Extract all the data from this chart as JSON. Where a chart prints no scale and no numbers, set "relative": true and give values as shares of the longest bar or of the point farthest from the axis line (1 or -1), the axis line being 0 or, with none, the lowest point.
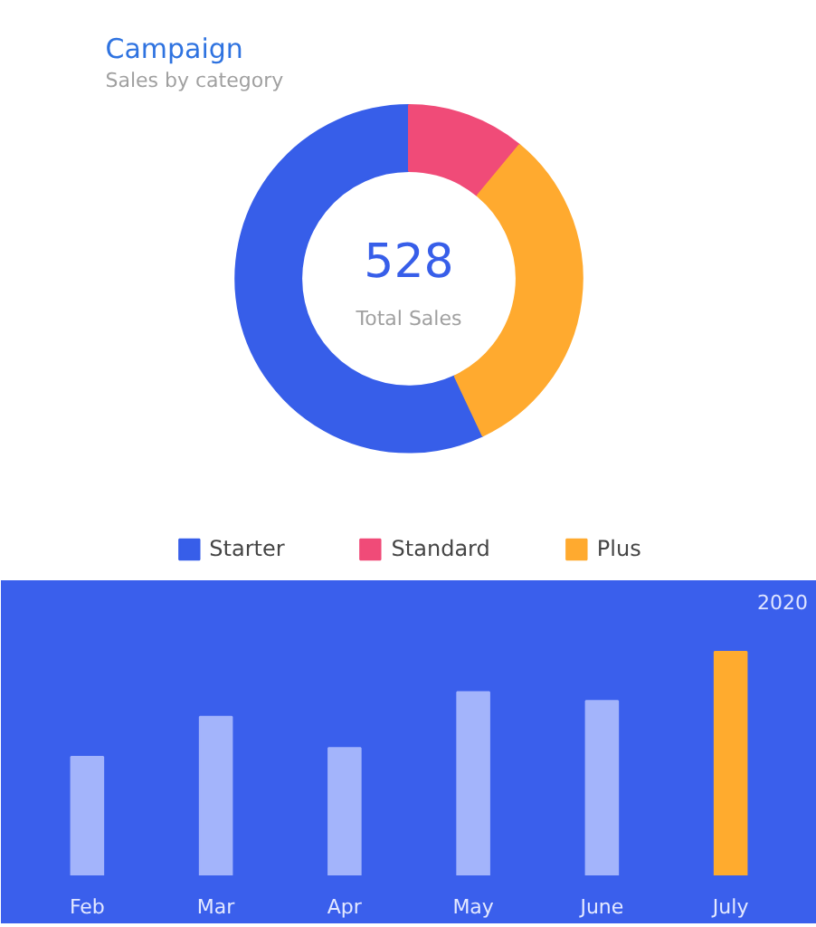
{
  "chart_data": [
    {
      "type": "donut",
      "title": "Campaign",
      "subtitle": "Sales by category",
      "categories": [
        "Starter",
        "Standard",
        "Plus"
      ],
      "values": [
        57,
        11,
        32
      ],
      "colors": [
        "#375ee9",
        "#f04b78",
        "#ffaa2f"
      ],
      "annotations": [
        "528",
        "Total Sales"
      ],
      "legend": "bottom"
    },
    {
      "type": "bar",
      "title": "2020",
      "categories": [
        "Feb",
        "Mar",
        "Apr",
        "May",
        "June",
        "July"
      ],
      "values": [
        0.53,
        0.71,
        0.57,
        0.82,
        0.78,
        1
      ],
      "colors": [
        "#a3b4fb",
        "#a3b4fb",
        "#a3b4fb",
        "#a3b4fb",
        "#a3b4fb",
        "#ffab2e"
      ],
      "relative": true
    }
  ]
}
